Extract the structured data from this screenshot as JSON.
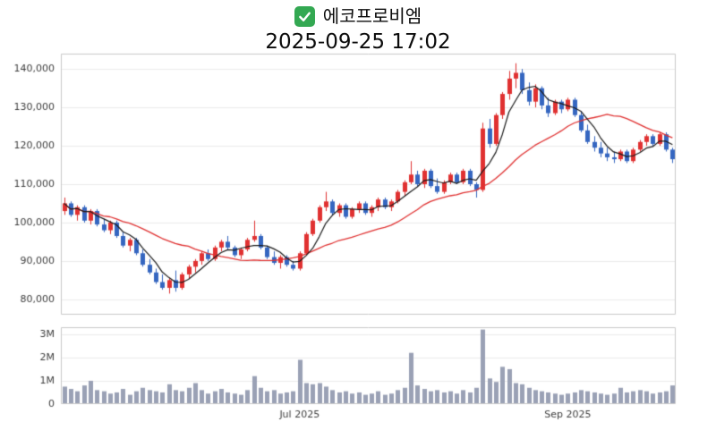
{
  "header": {
    "title": "에코프로비엠",
    "datetime": "2025-09-25 17:02"
  },
  "colors": {
    "up": "#e03131",
    "down": "#3566c0",
    "ma_short": "#1a1a1a",
    "ma_long": "#e03131",
    "volume": "#9aa1b5",
    "grid": "#ebebeb",
    "border": "#c9c9c9",
    "axis_text": "#3c3c3c",
    "checkbox_green": "#33a852",
    "plot_bg": "#ffffff"
  },
  "chart_data": {
    "type": "candlestick",
    "title": "에코프로비엠",
    "subtitle": "2025-09-25 17:02",
    "legend_position": "none",
    "grid": true,
    "price_axis": {
      "min": 76000,
      "max": 144000,
      "ticks": [
        {
          "value": 80000,
          "label": "80,000"
        },
        {
          "value": 90000,
          "label": "90,000"
        },
        {
          "value": 100000,
          "label": "100,000"
        },
        {
          "value": 110000,
          "label": "110,000"
        },
        {
          "value": 120000,
          "label": "120,000"
        },
        {
          "value": 130000,
          "label": "130,000"
        },
        {
          "value": 140000,
          "label": "140,000"
        }
      ]
    },
    "volume_axis": {
      "max": 3300000,
      "ticks": [
        {
          "value": 0,
          "label": "0"
        },
        {
          "value": 1000000,
          "label": "1M"
        },
        {
          "value": 2000000,
          "label": "2M"
        },
        {
          "value": 3000000,
          "label": "3M"
        }
      ]
    },
    "x_axis": {
      "ticks": [
        {
          "index": 36,
          "label": "Jul 2025"
        },
        {
          "index": 77,
          "label": "Sep 2025"
        }
      ]
    },
    "overlays": [
      {
        "name": "ma-long",
        "period": 20,
        "color_key": "ma_long",
        "width": 1.3
      },
      {
        "name": "ma-short",
        "period": 5,
        "color_key": "ma_short",
        "width": 1.2
      }
    ],
    "columns": [
      "open",
      "high",
      "low",
      "close",
      "volume"
    ],
    "candles": [
      [
        103000,
        106500,
        102000,
        105000,
        750000
      ],
      [
        105000,
        105500,
        101500,
        102000,
        650000
      ],
      [
        102000,
        104500,
        100500,
        104000,
        550000
      ],
      [
        104000,
        104500,
        100000,
        100500,
        800000
      ],
      [
        100500,
        103500,
        99500,
        103000,
        1000000
      ],
      [
        103000,
        103500,
        99000,
        99500,
        600000
      ],
      [
        99500,
        101000,
        97500,
        98000,
        550000
      ],
      [
        98000,
        100500,
        97000,
        100000,
        450000
      ],
      [
        100000,
        100500,
        96000,
        96500,
        500000
      ],
      [
        96500,
        97500,
        93500,
        94000,
        650000
      ],
      [
        94000,
        96000,
        92500,
        95500,
        400000
      ],
      [
        95500,
        96000,
        91500,
        92000,
        550000
      ],
      [
        92000,
        93000,
        88500,
        89000,
        700000
      ],
      [
        89000,
        90500,
        86500,
        87000,
        600000
      ],
      [
        87000,
        88000,
        84000,
        84500,
        550000
      ],
      [
        84500,
        86500,
        82500,
        83000,
        500000
      ],
      [
        83000,
        85500,
        81500,
        85000,
        850000
      ],
      [
        85000,
        87500,
        82000,
        83000,
        600000
      ],
      [
        83000,
        87000,
        82500,
        86500,
        550000
      ],
      [
        86500,
        89000,
        85500,
        88500,
        700000
      ],
      [
        88500,
        90500,
        87000,
        90000,
        900000
      ],
      [
        90000,
        92500,
        89000,
        92000,
        600000
      ],
      [
        92000,
        93000,
        90000,
        90500,
        450000
      ],
      [
        90500,
        94000,
        90000,
        93500,
        550000
      ],
      [
        93500,
        95500,
        92500,
        95000,
        650000
      ],
      [
        95000,
        96500,
        93000,
        93500,
        500000
      ],
      [
        93500,
        94000,
        91000,
        91500,
        450000
      ],
      [
        91500,
        93500,
        90500,
        93000,
        400000
      ],
      [
        93000,
        96000,
        92500,
        95500,
        600000
      ],
      [
        95500,
        100500,
        95000,
        96500,
        1200000
      ],
      [
        96500,
        97000,
        93000,
        93500,
        700000
      ],
      [
        93500,
        94000,
        90500,
        91000,
        550000
      ],
      [
        91000,
        92500,
        89000,
        89500,
        600000
      ],
      [
        89500,
        91500,
        88000,
        91000,
        450000
      ],
      [
        91000,
        91500,
        88500,
        89000,
        500000
      ],
      [
        89000,
        90000,
        87500,
        88000,
        550000
      ],
      [
        88000,
        92500,
        87500,
        92000,
        1900000
      ],
      [
        92000,
        97500,
        91500,
        97000,
        900000
      ],
      [
        97000,
        101000,
        96500,
        100500,
        850000
      ],
      [
        100500,
        104500,
        100000,
        104000,
        900000
      ],
      [
        104000,
        108000,
        103000,
        105500,
        750000
      ],
      [
        105500,
        106000,
        102000,
        102500,
        600000
      ],
      [
        102500,
        105000,
        101500,
        104500,
        500000
      ],
      [
        104500,
        105000,
        101000,
        101500,
        550000
      ],
      [
        101500,
        104000,
        101000,
        103500,
        450000
      ],
      [
        103500,
        105500,
        102500,
        105000,
        500000
      ],
      [
        105000,
        105500,
        102000,
        102500,
        400000
      ],
      [
        102500,
        104500,
        101500,
        104000,
        450000
      ],
      [
        104000,
        106500,
        103000,
        106000,
        550000
      ],
      [
        106000,
        106500,
        103500,
        104000,
        400000
      ],
      [
        104000,
        106000,
        103000,
        105500,
        450000
      ],
      [
        105500,
        108500,
        105000,
        108000,
        600000
      ],
      [
        108000,
        111000,
        107000,
        110500,
        700000
      ],
      [
        110500,
        116000,
        110000,
        112500,
        2200000
      ],
      [
        112500,
        113500,
        109500,
        110000,
        800000
      ],
      [
        110000,
        114000,
        109000,
        113500,
        650000
      ],
      [
        113500,
        114000,
        109000,
        109500,
        550000
      ],
      [
        109500,
        111500,
        107500,
        108000,
        600000
      ],
      [
        108000,
        111000,
        107500,
        110500,
        500000
      ],
      [
        110500,
        113000,
        110000,
        112500,
        550000
      ],
      [
        112500,
        113000,
        110000,
        110500,
        450000
      ],
      [
        110500,
        114000,
        110000,
        113500,
        600000
      ],
      [
        113500,
        114000,
        109500,
        110000,
        500000
      ],
      [
        110000,
        110500,
        106500,
        108500,
        700000
      ],
      [
        108500,
        126000,
        108000,
        124500,
        3200000
      ],
      [
        124500,
        127000,
        119500,
        120500,
        1100000
      ],
      [
        120500,
        128500,
        120000,
        128000,
        950000
      ],
      [
        128000,
        134000,
        127000,
        133500,
        1600000
      ],
      [
        133500,
        139500,
        132000,
        137500,
        1500000
      ],
      [
        137500,
        141500,
        135000,
        139000,
        900000
      ],
      [
        139000,
        140000,
        133500,
        134500,
        850000
      ],
      [
        134500,
        136500,
        130500,
        131500,
        700000
      ],
      [
        131500,
        136000,
        130000,
        135000,
        600000
      ],
      [
        135000,
        135500,
        129500,
        130500,
        550000
      ],
      [
        130500,
        132500,
        127500,
        128500,
        500000
      ],
      [
        128500,
        132000,
        128000,
        131500,
        450000
      ],
      [
        131500,
        132000,
        128500,
        129500,
        400000
      ],
      [
        129500,
        132500,
        129000,
        132000,
        450000
      ],
      [
        132000,
        132500,
        127500,
        128000,
        500000
      ],
      [
        128000,
        129000,
        123500,
        124000,
        600000
      ],
      [
        124000,
        125500,
        120500,
        121000,
        550000
      ],
      [
        121000,
        122500,
        118500,
        119500,
        500000
      ],
      [
        119500,
        121000,
        117000,
        118000,
        450000
      ],
      [
        118000,
        119500,
        116000,
        117000,
        400000
      ],
      [
        117000,
        118500,
        115500,
        116500,
        450000
      ],
      [
        116500,
        119000,
        116000,
        118500,
        700000
      ],
      [
        118500,
        119000,
        115500,
        116000,
        500000
      ],
      [
        116000,
        119500,
        115500,
        119000,
        550000
      ],
      [
        119000,
        121500,
        118500,
        121000,
        600000
      ],
      [
        121000,
        123000,
        120000,
        122500,
        550000
      ],
      [
        122500,
        123000,
        120000,
        120500,
        450000
      ],
      [
        120500,
        123500,
        120000,
        123000,
        500000
      ],
      [
        123000,
        123500,
        118500,
        119000,
        550000
      ],
      [
        119000,
        119500,
        115500,
        116500,
        800000
      ]
    ]
  }
}
